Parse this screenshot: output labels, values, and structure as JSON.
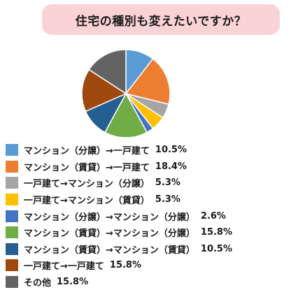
{
  "header": {
    "title": "住宅の種別も変えたいですか？"
  },
  "chart_data": {
    "type": "pie",
    "title": "住宅の種別も変えたいですか？",
    "legend_position": "bottom",
    "slices": [
      {
        "label": "マンション（分譲）→一戸建て",
        "value": 10.5,
        "display": "10.5%",
        "color": "#5b9bd5"
      },
      {
        "label": "マンション（賃貸）→一戸建て",
        "value": 18.4,
        "display": "18.4%",
        "color": "#ed7d31"
      },
      {
        "label": "一戸建て→マンション（分譲）",
        "value": 5.3,
        "display": "5.3%",
        "color": "#a5a5a5"
      },
      {
        "label": "一戸建て→マンション（賃貸）",
        "value": 5.3,
        "display": "5.3%",
        "color": "#ffc000"
      },
      {
        "label": "マンション（分譲）→マンション（分譲）",
        "value": 2.6,
        "display": "2.6%",
        "color": "#4472c4"
      },
      {
        "label": "マンション（賃貸）→マンション（分譲）",
        "value": 15.8,
        "display": "15.8%",
        "color": "#70ad47"
      },
      {
        "label": "マンション（賃貸）→マンション（賃貸）",
        "value": 10.5,
        "display": "10.5%",
        "color": "#255e91"
      },
      {
        "label": "一戸建て→一戸建て",
        "value": 15.8,
        "display": "15.8%",
        "color": "#9e480e"
      },
      {
        "label": "その他",
        "value": 15.8,
        "display": "15.8%",
        "color": "#636363"
      }
    ]
  }
}
